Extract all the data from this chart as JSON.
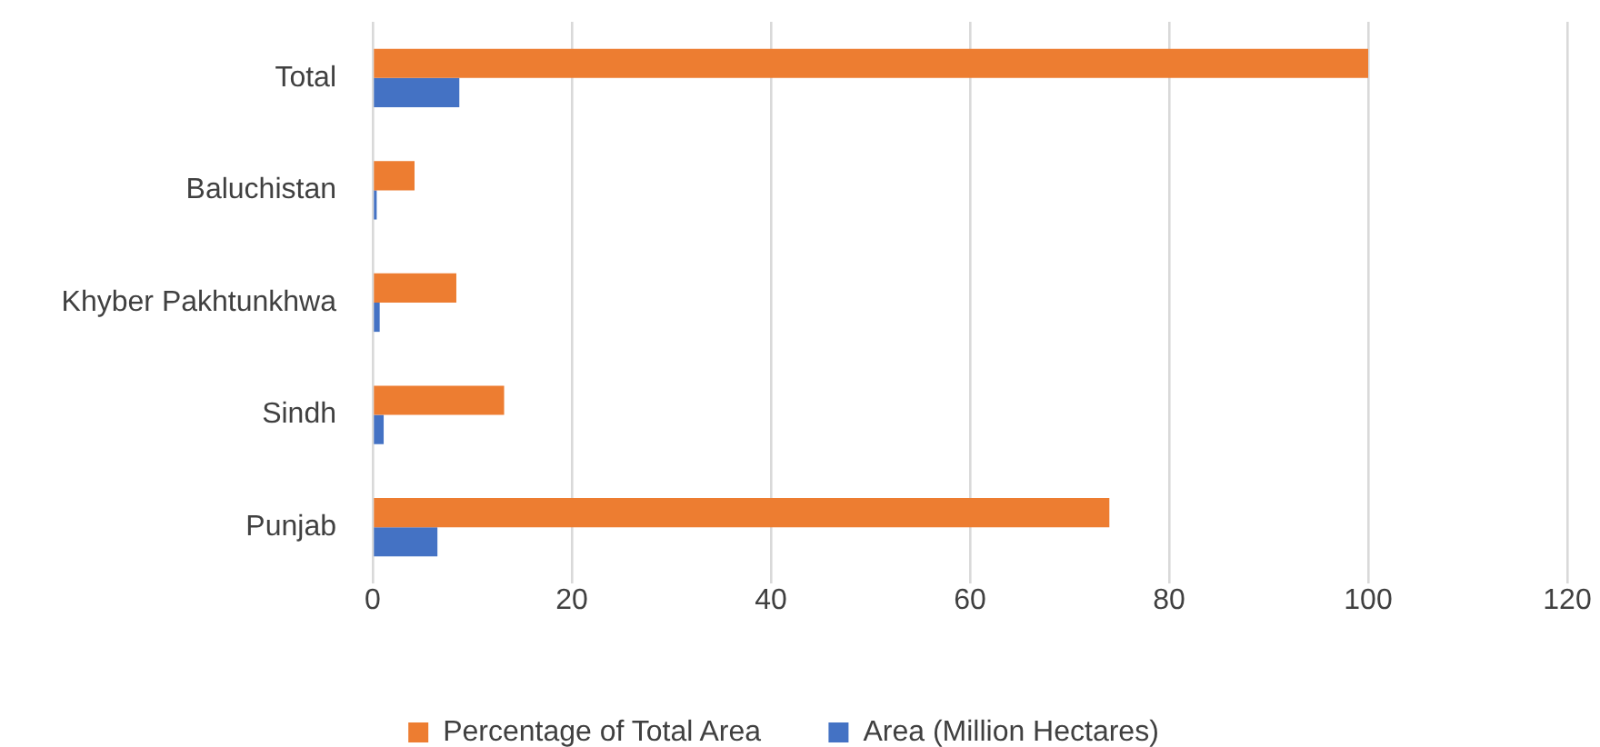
{
  "chart_data": {
    "type": "bar",
    "orientation": "horizontal",
    "categories": [
      "Total",
      "Baluchistan",
      "Khyber Pakhtunkhwa",
      "Sindh",
      "Punjab"
    ],
    "series": [
      {
        "name": "Percentage of Total Area",
        "color": "#ed7d31",
        "values": [
          100,
          4.2,
          8.4,
          13.2,
          74
        ]
      },
      {
        "name": "Area (Million Hectares)",
        "color": "#4472c4",
        "values": [
          8.7,
          0.4,
          0.7,
          1.1,
          6.5
        ]
      }
    ],
    "xlim": [
      0,
      120
    ],
    "xticks": [
      0,
      20,
      40,
      60,
      80,
      100,
      120
    ],
    "grid": "x",
    "legend": "bottom"
  }
}
